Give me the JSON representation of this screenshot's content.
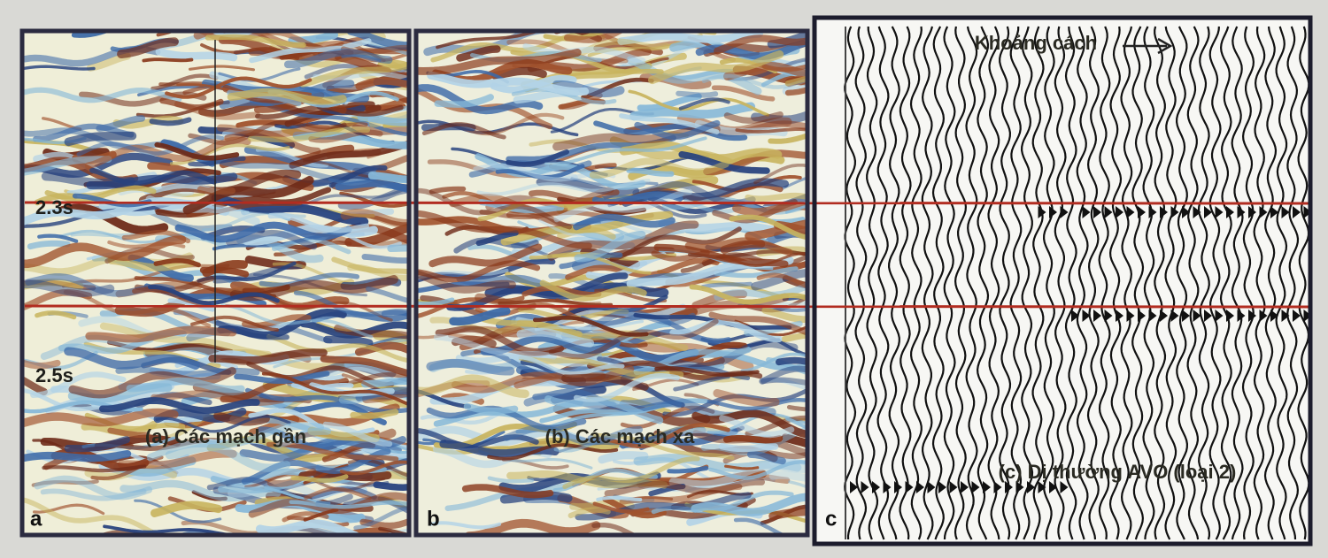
{
  "time_labels": [
    "2.3s",
    "2.5s"
  ],
  "panels": [
    {
      "letter": "a",
      "caption": "(a) Các mạch gần"
    },
    {
      "letter": "b",
      "caption": "(b) Các mạch xa"
    },
    {
      "letter": "c",
      "caption": "(c) Dị thường AVO (loại 2)",
      "heading": "Khoảng cách"
    }
  ]
}
